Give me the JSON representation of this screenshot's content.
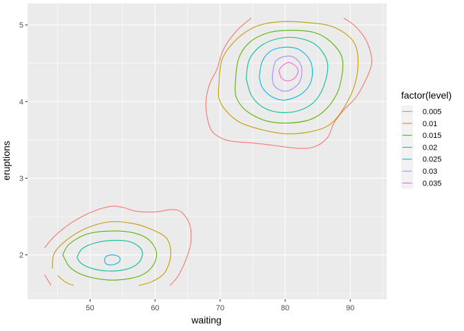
{
  "chart_data": {
    "type": "line",
    "subtype": "density-contour",
    "xlabel": "waiting",
    "ylabel": "eruptions",
    "xlim": [
      40.4,
      95.6
    ],
    "ylim": [
      1.42,
      5.28
    ],
    "x_ticks": [
      50,
      60,
      70,
      80,
      90
    ],
    "y_ticks": [
      2,
      3,
      4,
      5
    ],
    "grid": true,
    "legend_title": "factor(level)",
    "legend_position": "right",
    "series": [
      {
        "name": "0.005",
        "color": "#F8766D",
        "paths": [
          [
            [
              43.0,
              2.09
            ],
            [
              44.5,
              2.24
            ],
            [
              47.0,
              2.41
            ],
            [
              50.0,
              2.55
            ],
            [
              53.0,
              2.63
            ],
            [
              55.0,
              2.62
            ],
            [
              57.0,
              2.57
            ],
            [
              60.0,
              2.56
            ],
            [
              62.5,
              2.59
            ],
            [
              64.0,
              2.56
            ],
            [
              65.3,
              2.4
            ],
            [
              65.5,
              2.17
            ],
            [
              64.8,
              1.95
            ],
            [
              63.5,
              1.72
            ],
            [
              62.3,
              1.6
            ]
          ],
          [
            [
              43.0,
              1.74
            ],
            [
              44.0,
              1.6
            ]
          ],
          [
            [
              74.8,
              5.09
            ],
            [
              72.5,
              4.92
            ],
            [
              70.5,
              4.68
            ],
            [
              69.5,
              4.42
            ],
            [
              68.3,
              4.21
            ],
            [
              67.8,
              3.94
            ],
            [
              68.5,
              3.65
            ],
            [
              70.0,
              3.53
            ],
            [
              72.0,
              3.48
            ],
            [
              75.0,
              3.46
            ],
            [
              78.0,
              3.43
            ],
            [
              82.0,
              3.39
            ],
            [
              84.5,
              3.41
            ],
            [
              86.5,
              3.53
            ],
            [
              87.5,
              3.72
            ],
            [
              89.0,
              3.89
            ],
            [
              91.0,
              4.07
            ],
            [
              92.8,
              4.36
            ],
            [
              93.3,
              4.55
            ],
            [
              92.5,
              4.79
            ],
            [
              90.8,
              4.98
            ],
            [
              89.0,
              5.09
            ]
          ]
        ]
      },
      {
        "name": "0.01",
        "color": "#C49A00",
        "paths": [
          [
            [
              44.2,
              1.82
            ],
            [
              44.5,
              2.02
            ],
            [
              46.5,
              2.2
            ],
            [
              49.5,
              2.35
            ],
            [
              53.0,
              2.43
            ],
            [
              56.5,
              2.41
            ],
            [
              59.5,
              2.33
            ],
            [
              61.8,
              2.21
            ],
            [
              62.4,
              2.0
            ],
            [
              61.5,
              1.77
            ],
            [
              59.5,
              1.65
            ],
            [
              57.5,
              1.6
            ]
          ],
          [
            [
              45.0,
              1.73
            ],
            [
              46.3,
              1.64
            ],
            [
              47.5,
              1.6
            ]
          ],
          [
            [
              69.8,
              4.21
            ],
            [
              70.3,
              4.55
            ],
            [
              72.5,
              4.81
            ],
            [
              75.5,
              4.98
            ],
            [
              79.0,
              5.04
            ],
            [
              83.5,
              5.03
            ],
            [
              87.5,
              4.97
            ],
            [
              90.5,
              4.78
            ],
            [
              91.2,
              4.5
            ],
            [
              90.5,
              4.17
            ],
            [
              88.5,
              3.85
            ],
            [
              86.5,
              3.68
            ],
            [
              83.5,
              3.6
            ],
            [
              80.0,
              3.58
            ],
            [
              76.5,
              3.63
            ],
            [
              73.0,
              3.73
            ],
            [
              70.8,
              3.89
            ],
            [
              69.8,
              4.05
            ],
            [
              69.8,
              4.21
            ]
          ]
        ]
      },
      {
        "name": "0.015",
        "color": "#53B400",
        "paths": [
          [
            [
              45.8,
              2.0
            ],
            [
              46.8,
              2.14
            ],
            [
              49.5,
              2.27
            ],
            [
              53.0,
              2.31
            ],
            [
              56.5,
              2.29
            ],
            [
              59.0,
              2.2
            ],
            [
              60.2,
              2.03
            ],
            [
              59.6,
              1.85
            ],
            [
              57.5,
              1.72
            ],
            [
              53.5,
              1.67
            ],
            [
              49.5,
              1.72
            ],
            [
              47.0,
              1.83
            ],
            [
              45.8,
              2.0
            ]
          ],
          [
            [
              72.3,
              4.21
            ],
            [
              72.8,
              4.55
            ],
            [
              74.5,
              4.77
            ],
            [
              77.5,
              4.9
            ],
            [
              81.0,
              4.93
            ],
            [
              84.5,
              4.9
            ],
            [
              87.0,
              4.78
            ],
            [
              88.8,
              4.55
            ],
            [
              88.3,
              4.18
            ],
            [
              86.5,
              3.92
            ],
            [
              84.0,
              3.77
            ],
            [
              80.5,
              3.72
            ],
            [
              77.0,
              3.75
            ],
            [
              74.0,
              3.88
            ],
            [
              72.5,
              4.05
            ],
            [
              72.3,
              4.21
            ]
          ]
        ]
      },
      {
        "name": "0.02",
        "color": "#00C094",
        "paths": [
          [
            [
              48.0,
              1.97
            ],
            [
              48.8,
              2.08
            ],
            [
              51.0,
              2.16
            ],
            [
              54.0,
              2.19
            ],
            [
              56.5,
              2.16
            ],
            [
              58.0,
              2.05
            ],
            [
              57.5,
              1.9
            ],
            [
              55.5,
              1.81
            ],
            [
              52.5,
              1.79
            ],
            [
              50.0,
              1.83
            ],
            [
              48.5,
              1.9
            ],
            [
              48.0,
              1.97
            ]
          ],
          [
            [
              74.0,
              4.3
            ],
            [
              74.5,
              4.55
            ],
            [
              76.5,
              4.74
            ],
            [
              79.5,
              4.83
            ],
            [
              82.5,
              4.82
            ],
            [
              85.0,
              4.72
            ],
            [
              86.5,
              4.5
            ],
            [
              86.0,
              4.22
            ],
            [
              84.5,
              4.0
            ],
            [
              82.0,
              3.88
            ],
            [
              79.0,
              3.86
            ],
            [
              76.5,
              3.93
            ],
            [
              74.8,
              4.08
            ],
            [
              74.0,
              4.3
            ]
          ]
        ]
      },
      {
        "name": "0.025",
        "color": "#00B6EB",
        "paths": [
          [
            [
              52.2,
              1.93
            ],
            [
              52.5,
              1.98
            ],
            [
              53.5,
              2.0
            ],
            [
              54.5,
              1.97
            ],
            [
              54.5,
              1.91
            ],
            [
              53.5,
              1.87
            ],
            [
              52.5,
              1.88
            ],
            [
              52.2,
              1.93
            ]
          ],
          [
            [
              76.0,
              4.32
            ],
            [
              76.5,
              4.53
            ],
            [
              78.0,
              4.67
            ],
            [
              80.5,
              4.71
            ],
            [
              82.5,
              4.66
            ],
            [
              84.0,
              4.5
            ],
            [
              84.0,
              4.27
            ],
            [
              82.5,
              4.1
            ],
            [
              80.0,
              4.02
            ],
            [
              78.0,
              4.06
            ],
            [
              76.5,
              4.18
            ],
            [
              76.0,
              4.32
            ]
          ]
        ]
      },
      {
        "name": "0.03",
        "color": "#A58AFF",
        "paths": [
          [
            [
              78.0,
              4.32
            ],
            [
              78.5,
              4.52
            ],
            [
              80.0,
              4.59
            ],
            [
              81.5,
              4.57
            ],
            [
              82.5,
              4.45
            ],
            [
              82.3,
              4.27
            ],
            [
              81.0,
              4.16
            ],
            [
              79.5,
              4.14
            ],
            [
              78.3,
              4.21
            ],
            [
              78.0,
              4.32
            ]
          ]
        ]
      },
      {
        "name": "0.035",
        "color": "#FB61D7",
        "paths": [
          [
            [
              79.0,
              4.4
            ],
            [
              79.5,
              4.46
            ],
            [
              80.5,
              4.51
            ],
            [
              81.5,
              4.47
            ],
            [
              82.0,
              4.4
            ],
            [
              81.5,
              4.31
            ],
            [
              80.5,
              4.27
            ],
            [
              79.5,
              4.3
            ],
            [
              79.0,
              4.4
            ]
          ]
        ]
      }
    ]
  }
}
